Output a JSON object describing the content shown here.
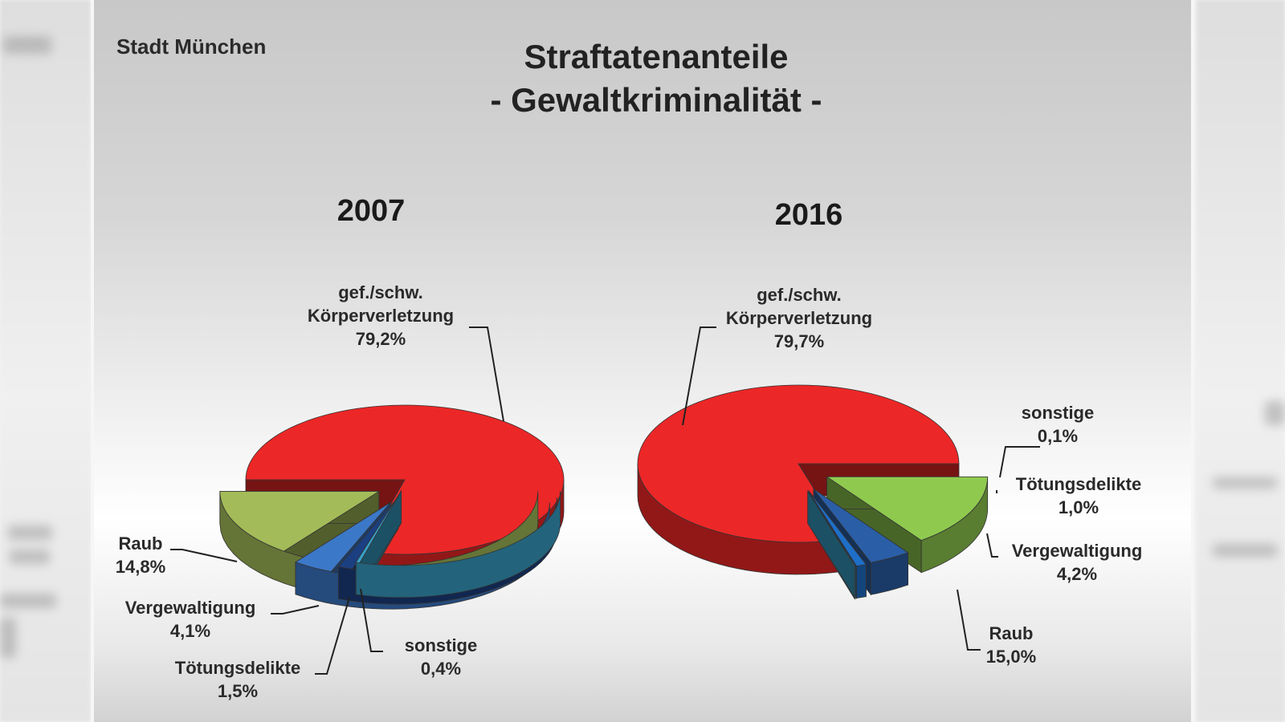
{
  "slide": {
    "region": "Stadt München",
    "title": "Straftatenanteile",
    "subtitle": "- Gewaltkriminalität -"
  },
  "chart_data": [
    {
      "type": "pie",
      "title": "2007",
      "slices": [
        {
          "label_lines": [
            "gef./schw.",
            "Körperverletzung"
          ],
          "value_text": "79,2%",
          "value": 79.2,
          "color": "#ec2727"
        },
        {
          "label_lines": [
            "sonstige"
          ],
          "value_text": "0,4%",
          "value": 0.4,
          "color": "#38a0c8"
        },
        {
          "label_lines": [
            "Tötungsdelikte"
          ],
          "value_text": "1,5%",
          "value": 1.5,
          "color": "#1b3f80"
        },
        {
          "label_lines": [
            "Vergewaltigung"
          ],
          "value_text": "4,1%",
          "value": 4.1,
          "color": "#3c78c8"
        },
        {
          "label_lines": [
            "Raub"
          ],
          "value_text": "14,8%",
          "value": 14.8,
          "color": "#a3bb58"
        }
      ]
    },
    {
      "type": "pie",
      "title": "2016",
      "slices": [
        {
          "label_lines": [
            "gef./schw.",
            "Körperverletzung"
          ],
          "value_text": "79,7%",
          "value": 79.7,
          "color": "#ec2727"
        },
        {
          "label_lines": [
            "sonstige"
          ],
          "value_text": "0,1%",
          "value": 0.1,
          "color": "#38a0c8"
        },
        {
          "label_lines": [
            "Tötungsdelikte"
          ],
          "value_text": "1,0%",
          "value": 1.0,
          "color": "#1e6fc8"
        },
        {
          "label_lines": [
            "Vergewaltigung"
          ],
          "value_text": "4,2%",
          "value": 4.2,
          "color": "#2a5fa8"
        },
        {
          "label_lines": [
            "Raub"
          ],
          "value_text": "15,0%",
          "value": 15.0,
          "color": "#8fca4f"
        }
      ]
    }
  ]
}
